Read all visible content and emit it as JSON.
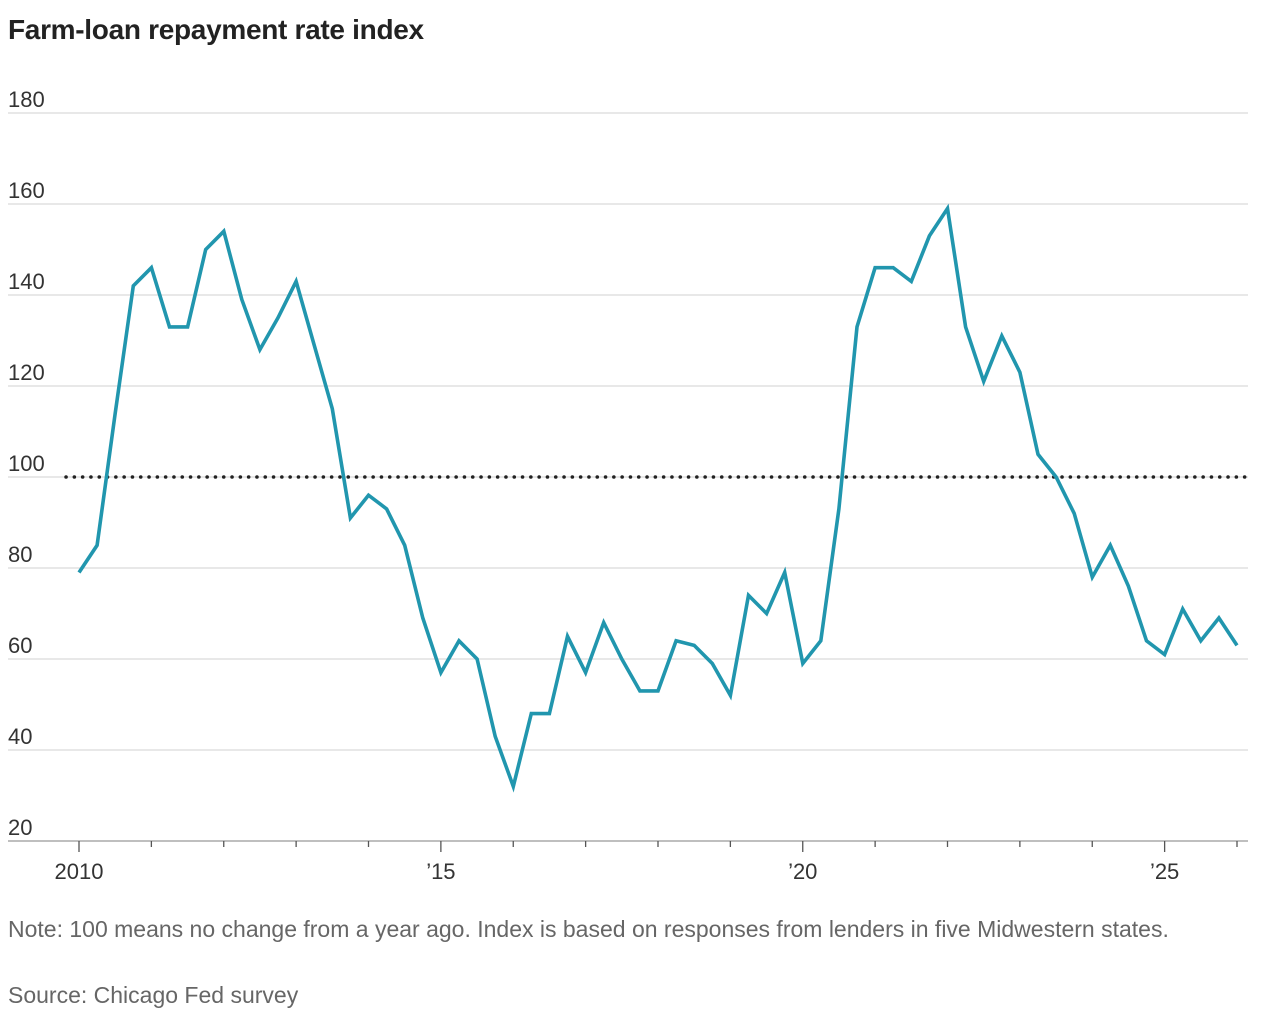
{
  "chart_data": {
    "type": "line",
    "title": "Farm-loan repayment rate index",
    "ylim": [
      20,
      180
    ],
    "y_ticks": [
      20,
      40,
      60,
      80,
      100,
      120,
      140,
      160,
      180
    ],
    "xlim": [
      2010,
      2026
    ],
    "x_ticks": [
      {
        "value": 2010,
        "label": "2010"
      },
      {
        "value": 2015,
        "label": "’15"
      },
      {
        "value": 2020,
        "label": "’20"
      },
      {
        "value": 2025,
        "label": "’25"
      }
    ],
    "reference_line": {
      "value": 100,
      "style": "dotted"
    },
    "grid": true,
    "line_color": "#2196AE",
    "series": [
      {
        "x": [
          2010.0,
          2010.25,
          2010.5,
          2010.75,
          2011.0,
          2011.25,
          2011.5,
          2011.75,
          2012.0,
          2012.25,
          2012.5,
          2012.75,
          2013.0,
          2013.25,
          2013.5,
          2013.75,
          2014.0,
          2014.25,
          2014.5,
          2014.75,
          2015.0,
          2015.25,
          2015.5,
          2015.75,
          2016.0,
          2016.25,
          2016.5,
          2016.75,
          2017.0,
          2017.25,
          2017.5,
          2017.75,
          2018.0,
          2018.25,
          2018.5,
          2018.75,
          2019.0,
          2019.25,
          2019.5,
          2019.75,
          2020.0,
          2020.25,
          2020.5,
          2020.75,
          2021.0,
          2021.25,
          2021.5,
          2021.75,
          2022.0,
          2022.25,
          2022.5,
          2022.75,
          2023.0,
          2023.25,
          2023.5,
          2023.75,
          2024.0,
          2024.25,
          2024.5,
          2024.75,
          2025.0,
          2025.25,
          2025.5,
          2025.75,
          2026.0
        ],
        "values": [
          79,
          85,
          114,
          142,
          146,
          133,
          133,
          150,
          154,
          139,
          128,
          135,
          143,
          129,
          115,
          91,
          96,
          93,
          85,
          69,
          57,
          64,
          60,
          43,
          32,
          48,
          48,
          65,
          57,
          68,
          60,
          53,
          53,
          64,
          63,
          59,
          52,
          74,
          70,
          79,
          59,
          64,
          93,
          133,
          146,
          146,
          143,
          153,
          159,
          133,
          121,
          131,
          123,
          105,
          100,
          92,
          78,
          85,
          76,
          64,
          61,
          71,
          64,
          69,
          63
        ]
      }
    ],
    "note": "Note: 100 means no change from a year ago. Index is based on responses from lenders in five Midwestern states.",
    "source": "Source: Chicago Fed survey"
  }
}
